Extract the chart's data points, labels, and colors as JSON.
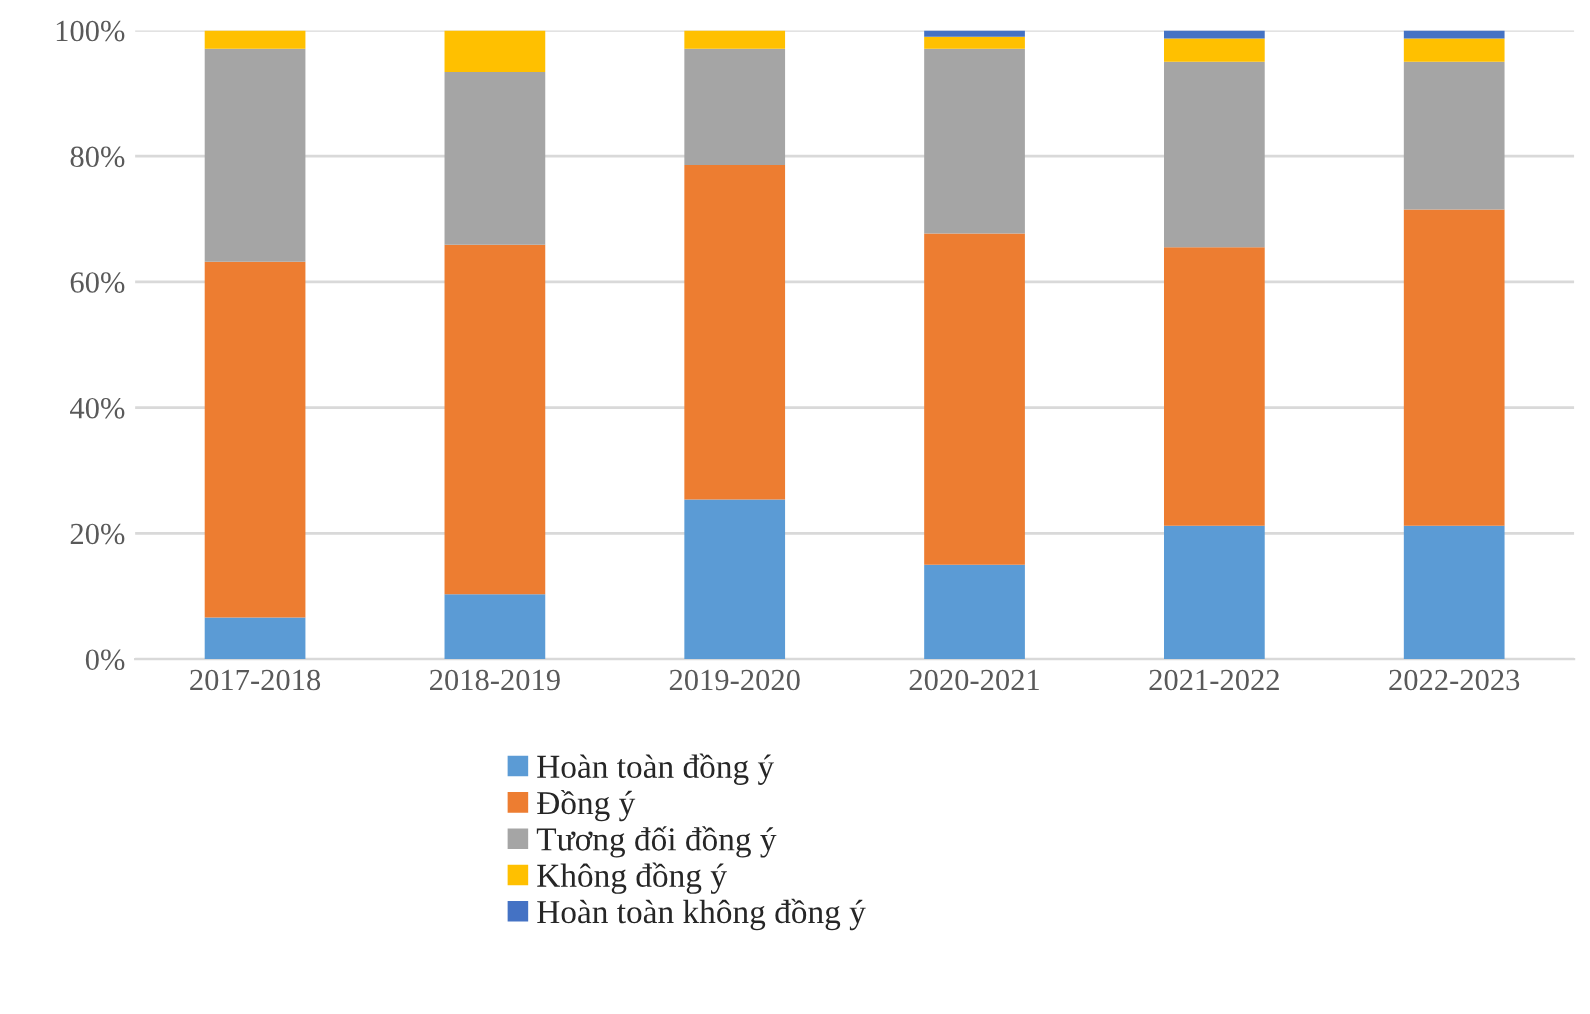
{
  "chart_data": {
    "type": "bar",
    "stacked": true,
    "categories": [
      "2017-2018",
      "2018-2019",
      "2019-2020",
      "2020-2021",
      "2021-2022",
      "2022-2023"
    ],
    "series": [
      {
        "name": "Hoàn toàn đồng ý",
        "color": "#5b9bd5",
        "values": [
          6.6,
          10.3,
          25.4,
          15.0,
          21.2,
          21.2
        ]
      },
      {
        "name": "Đồng ý",
        "color": "#ed7d31",
        "values": [
          56.6,
          55.6,
          53.2,
          52.7,
          44.3,
          50.3
        ]
      },
      {
        "name": "Tương đối đồng ý",
        "color": "#a5a5a5",
        "values": [
          33.9,
          27.5,
          18.5,
          29.4,
          29.5,
          23.5
        ]
      },
      {
        "name": "Không đồng ý",
        "color": "#ffc000",
        "values": [
          2.9,
          6.6,
          2.9,
          1.9,
          3.7,
          3.7
        ]
      },
      {
        "name": "Hoàn toàn không đồng ý",
        "color": "#4472c4",
        "values": [
          null,
          null,
          null,
          1.0,
          1.3,
          1.3
        ]
      }
    ],
    "ylim": [
      0,
      100
    ],
    "yticks": [
      {
        "value": 0,
        "label": "0%"
      },
      {
        "value": 20,
        "label": "20%"
      },
      {
        "value": 40,
        "label": "40%"
      },
      {
        "value": 60,
        "label": "60%"
      },
      {
        "value": 80,
        "label": "80%"
      },
      {
        "value": 100,
        "label": "100%"
      }
    ],
    "grid": "y",
    "legend": "bottom"
  }
}
